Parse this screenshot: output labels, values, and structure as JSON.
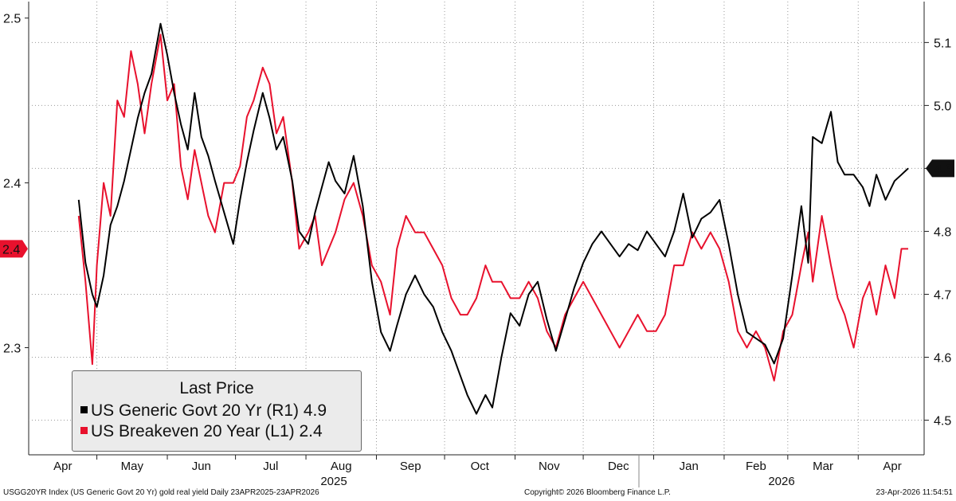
{
  "chart_data": {
    "type": "line",
    "x_range": [
      "2025-04-01",
      "2026-04-30"
    ],
    "month_labels": [
      "Apr",
      "May",
      "Jun",
      "Jul",
      "Aug",
      "Sep",
      "Oct",
      "Nov",
      "Dec",
      "Jan",
      "Feb",
      "Mar",
      "Apr"
    ],
    "year_labels": [
      "2025",
      "2026"
    ],
    "left_axis": {
      "ticks": [
        "2.5",
        "2.4",
        "2.3"
      ],
      "range": [
        2.235,
        2.51
      ]
    },
    "right_axis": {
      "ticks": [
        "5.1",
        "5.0",
        "4.9",
        "4.8",
        "4.7",
        "4.6",
        "4.5"
      ],
      "range": [
        4.445,
        5.165
      ]
    },
    "grid": true,
    "legend_position": "bottom-left",
    "legend": {
      "title": "Last Price",
      "entries": [
        {
          "label": "US Generic Govt 20 Yr  (R1) 4.9",
          "color": "#000000"
        },
        {
          "label": "US Breakeven 20 Year  (L1) 2.4",
          "color": "#e8112d"
        }
      ]
    },
    "last_value_tags": {
      "left": "2.4",
      "right": "4.9"
    },
    "series": [
      {
        "name": "US Generic Govt 20 Yr",
        "axis": "right",
        "color": "#000000",
        "points": [
          [
            "2025-04-23",
            4.85
          ],
          [
            "2025-04-26",
            4.75
          ],
          [
            "2025-04-29",
            4.7
          ],
          [
            "2025-05-01",
            4.68
          ],
          [
            "2025-05-04",
            4.73
          ],
          [
            "2025-05-07",
            4.81
          ],
          [
            "2025-05-10",
            4.84
          ],
          [
            "2025-05-13",
            4.88
          ],
          [
            "2025-05-16",
            4.93
          ],
          [
            "2025-05-19",
            4.98
          ],
          [
            "2025-05-22",
            5.02
          ],
          [
            "2025-05-25",
            5.05
          ],
          [
            "2025-05-29",
            5.13
          ],
          [
            "2025-06-01",
            5.08
          ],
          [
            "2025-06-04",
            5.02
          ],
          [
            "2025-06-07",
            4.97
          ],
          [
            "2025-06-10",
            4.93
          ],
          [
            "2025-06-13",
            5.02
          ],
          [
            "2025-06-16",
            4.95
          ],
          [
            "2025-06-19",
            4.92
          ],
          [
            "2025-06-22",
            4.88
          ],
          [
            "2025-06-26",
            4.83
          ],
          [
            "2025-06-30",
            4.78
          ],
          [
            "2025-07-03",
            4.85
          ],
          [
            "2025-07-06",
            4.91
          ],
          [
            "2025-07-09",
            4.96
          ],
          [
            "2025-07-13",
            5.02
          ],
          [
            "2025-07-16",
            4.98
          ],
          [
            "2025-07-19",
            4.93
          ],
          [
            "2025-07-22",
            4.95
          ],
          [
            "2025-07-26",
            4.88
          ],
          [
            "2025-07-29",
            4.8
          ],
          [
            "2025-08-02",
            4.78
          ],
          [
            "2025-08-05",
            4.83
          ],
          [
            "2025-08-08",
            4.87
          ],
          [
            "2025-08-11",
            4.91
          ],
          [
            "2025-08-14",
            4.88
          ],
          [
            "2025-08-18",
            4.86
          ],
          [
            "2025-08-22",
            4.92
          ],
          [
            "2025-08-26",
            4.84
          ],
          [
            "2025-08-30",
            4.72
          ],
          [
            "2025-09-03",
            4.64
          ],
          [
            "2025-09-07",
            4.61
          ],
          [
            "2025-09-10",
            4.65
          ],
          [
            "2025-09-14",
            4.7
          ],
          [
            "2025-09-18",
            4.73
          ],
          [
            "2025-09-22",
            4.7
          ],
          [
            "2025-09-26",
            4.68
          ],
          [
            "2025-09-30",
            4.64
          ],
          [
            "2025-10-04",
            4.61
          ],
          [
            "2025-10-08",
            4.57
          ],
          [
            "2025-10-11",
            4.54
          ],
          [
            "2025-10-15",
            4.51
          ],
          [
            "2025-10-19",
            4.54
          ],
          [
            "2025-10-22",
            4.52
          ],
          [
            "2025-10-26",
            4.6
          ],
          [
            "2025-10-30",
            4.67
          ],
          [
            "2025-11-03",
            4.65
          ],
          [
            "2025-11-07",
            4.7
          ],
          [
            "2025-11-11",
            4.72
          ],
          [
            "2025-11-15",
            4.66
          ],
          [
            "2025-11-19",
            4.61
          ],
          [
            "2025-11-23",
            4.66
          ],
          [
            "2025-11-27",
            4.71
          ],
          [
            "2025-12-01",
            4.75
          ],
          [
            "2025-12-05",
            4.78
          ],
          [
            "2025-12-09",
            4.8
          ],
          [
            "2025-12-13",
            4.78
          ],
          [
            "2025-12-17",
            4.76
          ],
          [
            "2025-12-21",
            4.78
          ],
          [
            "2025-12-25",
            4.77
          ],
          [
            "2025-12-29",
            4.8
          ],
          [
            "2026-01-02",
            4.78
          ],
          [
            "2026-01-06",
            4.76
          ],
          [
            "2026-01-10",
            4.8
          ],
          [
            "2026-01-14",
            4.86
          ],
          [
            "2026-01-18",
            4.79
          ],
          [
            "2026-01-22",
            4.82
          ],
          [
            "2026-01-26",
            4.83
          ],
          [
            "2026-01-30",
            4.85
          ],
          [
            "2026-02-03",
            4.78
          ],
          [
            "2026-02-07",
            4.7
          ],
          [
            "2026-02-11",
            4.64
          ],
          [
            "2026-02-15",
            4.63
          ],
          [
            "2026-02-19",
            4.62
          ],
          [
            "2026-02-23",
            4.59
          ],
          [
            "2026-02-27",
            4.63
          ],
          [
            "2026-03-03",
            4.73
          ],
          [
            "2026-03-07",
            4.84
          ],
          [
            "2026-03-10",
            4.75
          ],
          [
            "2026-03-12",
            4.95
          ],
          [
            "2026-03-16",
            4.94
          ],
          [
            "2026-03-20",
            4.99
          ],
          [
            "2026-03-23",
            4.91
          ],
          [
            "2026-03-26",
            4.89
          ],
          [
            "2026-03-30",
            4.89
          ],
          [
            "2026-04-03",
            4.87
          ],
          [
            "2026-04-06",
            4.84
          ],
          [
            "2026-04-09",
            4.89
          ],
          [
            "2026-04-13",
            4.85
          ],
          [
            "2026-04-17",
            4.88
          ],
          [
            "2026-04-20",
            4.89
          ],
          [
            "2026-04-23",
            4.9
          ]
        ]
      },
      {
        "name": "US Breakeven 20 Year",
        "axis": "left",
        "color": "#e8112d",
        "points": [
          [
            "2025-04-23",
            2.38
          ],
          [
            "2025-04-26",
            2.34
          ],
          [
            "2025-04-29",
            2.29
          ],
          [
            "2025-05-01",
            2.35
          ],
          [
            "2025-05-04",
            2.4
          ],
          [
            "2025-05-07",
            2.38
          ],
          [
            "2025-05-10",
            2.45
          ],
          [
            "2025-05-13",
            2.44
          ],
          [
            "2025-05-16",
            2.48
          ],
          [
            "2025-05-19",
            2.46
          ],
          [
            "2025-05-22",
            2.43
          ],
          [
            "2025-05-25",
            2.46
          ],
          [
            "2025-05-29",
            2.49
          ],
          [
            "2025-06-01",
            2.45
          ],
          [
            "2025-06-04",
            2.46
          ],
          [
            "2025-06-07",
            2.41
          ],
          [
            "2025-06-10",
            2.39
          ],
          [
            "2025-06-13",
            2.42
          ],
          [
            "2025-06-16",
            2.4
          ],
          [
            "2025-06-19",
            2.38
          ],
          [
            "2025-06-22",
            2.37
          ],
          [
            "2025-06-26",
            2.4
          ],
          [
            "2025-06-30",
            2.4
          ],
          [
            "2025-07-03",
            2.41
          ],
          [
            "2025-07-06",
            2.44
          ],
          [
            "2025-07-09",
            2.45
          ],
          [
            "2025-07-13",
            2.47
          ],
          [
            "2025-07-16",
            2.46
          ],
          [
            "2025-07-19",
            2.43
          ],
          [
            "2025-07-22",
            2.44
          ],
          [
            "2025-07-26",
            2.4
          ],
          [
            "2025-07-29",
            2.36
          ],
          [
            "2025-08-02",
            2.37
          ],
          [
            "2025-08-05",
            2.38
          ],
          [
            "2025-08-08",
            2.35
          ],
          [
            "2025-08-11",
            2.36
          ],
          [
            "2025-08-14",
            2.37
          ],
          [
            "2025-08-18",
            2.39
          ],
          [
            "2025-08-22",
            2.4
          ],
          [
            "2025-08-26",
            2.38
          ],
          [
            "2025-08-30",
            2.35
          ],
          [
            "2025-09-03",
            2.34
          ],
          [
            "2025-09-07",
            2.32
          ],
          [
            "2025-09-10",
            2.36
          ],
          [
            "2025-09-14",
            2.38
          ],
          [
            "2025-09-18",
            2.37
          ],
          [
            "2025-09-22",
            2.37
          ],
          [
            "2025-09-26",
            2.36
          ],
          [
            "2025-09-30",
            2.35
          ],
          [
            "2025-10-04",
            2.33
          ],
          [
            "2025-10-08",
            2.32
          ],
          [
            "2025-10-11",
            2.32
          ],
          [
            "2025-10-15",
            2.33
          ],
          [
            "2025-10-19",
            2.35
          ],
          [
            "2025-10-22",
            2.34
          ],
          [
            "2025-10-26",
            2.34
          ],
          [
            "2025-10-30",
            2.33
          ],
          [
            "2025-11-03",
            2.33
          ],
          [
            "2025-11-07",
            2.34
          ],
          [
            "2025-11-11",
            2.33
          ],
          [
            "2025-11-15",
            2.31
          ],
          [
            "2025-11-19",
            2.3
          ],
          [
            "2025-11-23",
            2.32
          ],
          [
            "2025-11-27",
            2.33
          ],
          [
            "2025-12-01",
            2.34
          ],
          [
            "2025-12-05",
            2.33
          ],
          [
            "2025-12-09",
            2.32
          ],
          [
            "2025-12-13",
            2.31
          ],
          [
            "2025-12-17",
            2.3
          ],
          [
            "2025-12-21",
            2.31
          ],
          [
            "2025-12-25",
            2.32
          ],
          [
            "2025-12-29",
            2.31
          ],
          [
            "2026-01-02",
            2.31
          ],
          [
            "2026-01-06",
            2.32
          ],
          [
            "2026-01-10",
            2.35
          ],
          [
            "2026-01-14",
            2.35
          ],
          [
            "2026-01-18",
            2.37
          ],
          [
            "2026-01-22",
            2.36
          ],
          [
            "2026-01-26",
            2.37
          ],
          [
            "2026-01-30",
            2.36
          ],
          [
            "2026-02-03",
            2.34
          ],
          [
            "2026-02-07",
            2.31
          ],
          [
            "2026-02-11",
            2.3
          ],
          [
            "2026-02-15",
            2.31
          ],
          [
            "2026-02-19",
            2.3
          ],
          [
            "2026-02-23",
            2.28
          ],
          [
            "2026-02-27",
            2.31
          ],
          [
            "2026-03-03",
            2.32
          ],
          [
            "2026-03-07",
            2.35
          ],
          [
            "2026-03-10",
            2.37
          ],
          [
            "2026-03-12",
            2.34
          ],
          [
            "2026-03-16",
            2.38
          ],
          [
            "2026-03-20",
            2.35
          ],
          [
            "2026-03-23",
            2.33
          ],
          [
            "2026-03-26",
            2.32
          ],
          [
            "2026-03-30",
            2.3
          ],
          [
            "2026-04-03",
            2.33
          ],
          [
            "2026-04-06",
            2.34
          ],
          [
            "2026-04-09",
            2.32
          ],
          [
            "2026-04-13",
            2.35
          ],
          [
            "2026-04-17",
            2.33
          ],
          [
            "2026-04-20",
            2.36
          ],
          [
            "2026-04-23",
            2.36
          ]
        ]
      }
    ]
  },
  "footer": {
    "left": "USGG20YR Index (US Generic Govt 20 Yr) gold real yield Daily 23APR2025-23APR2026",
    "center": "Copyright© 2026 Bloomberg Finance L.P.",
    "right": "23-Apr-2026 11:54:51"
  }
}
